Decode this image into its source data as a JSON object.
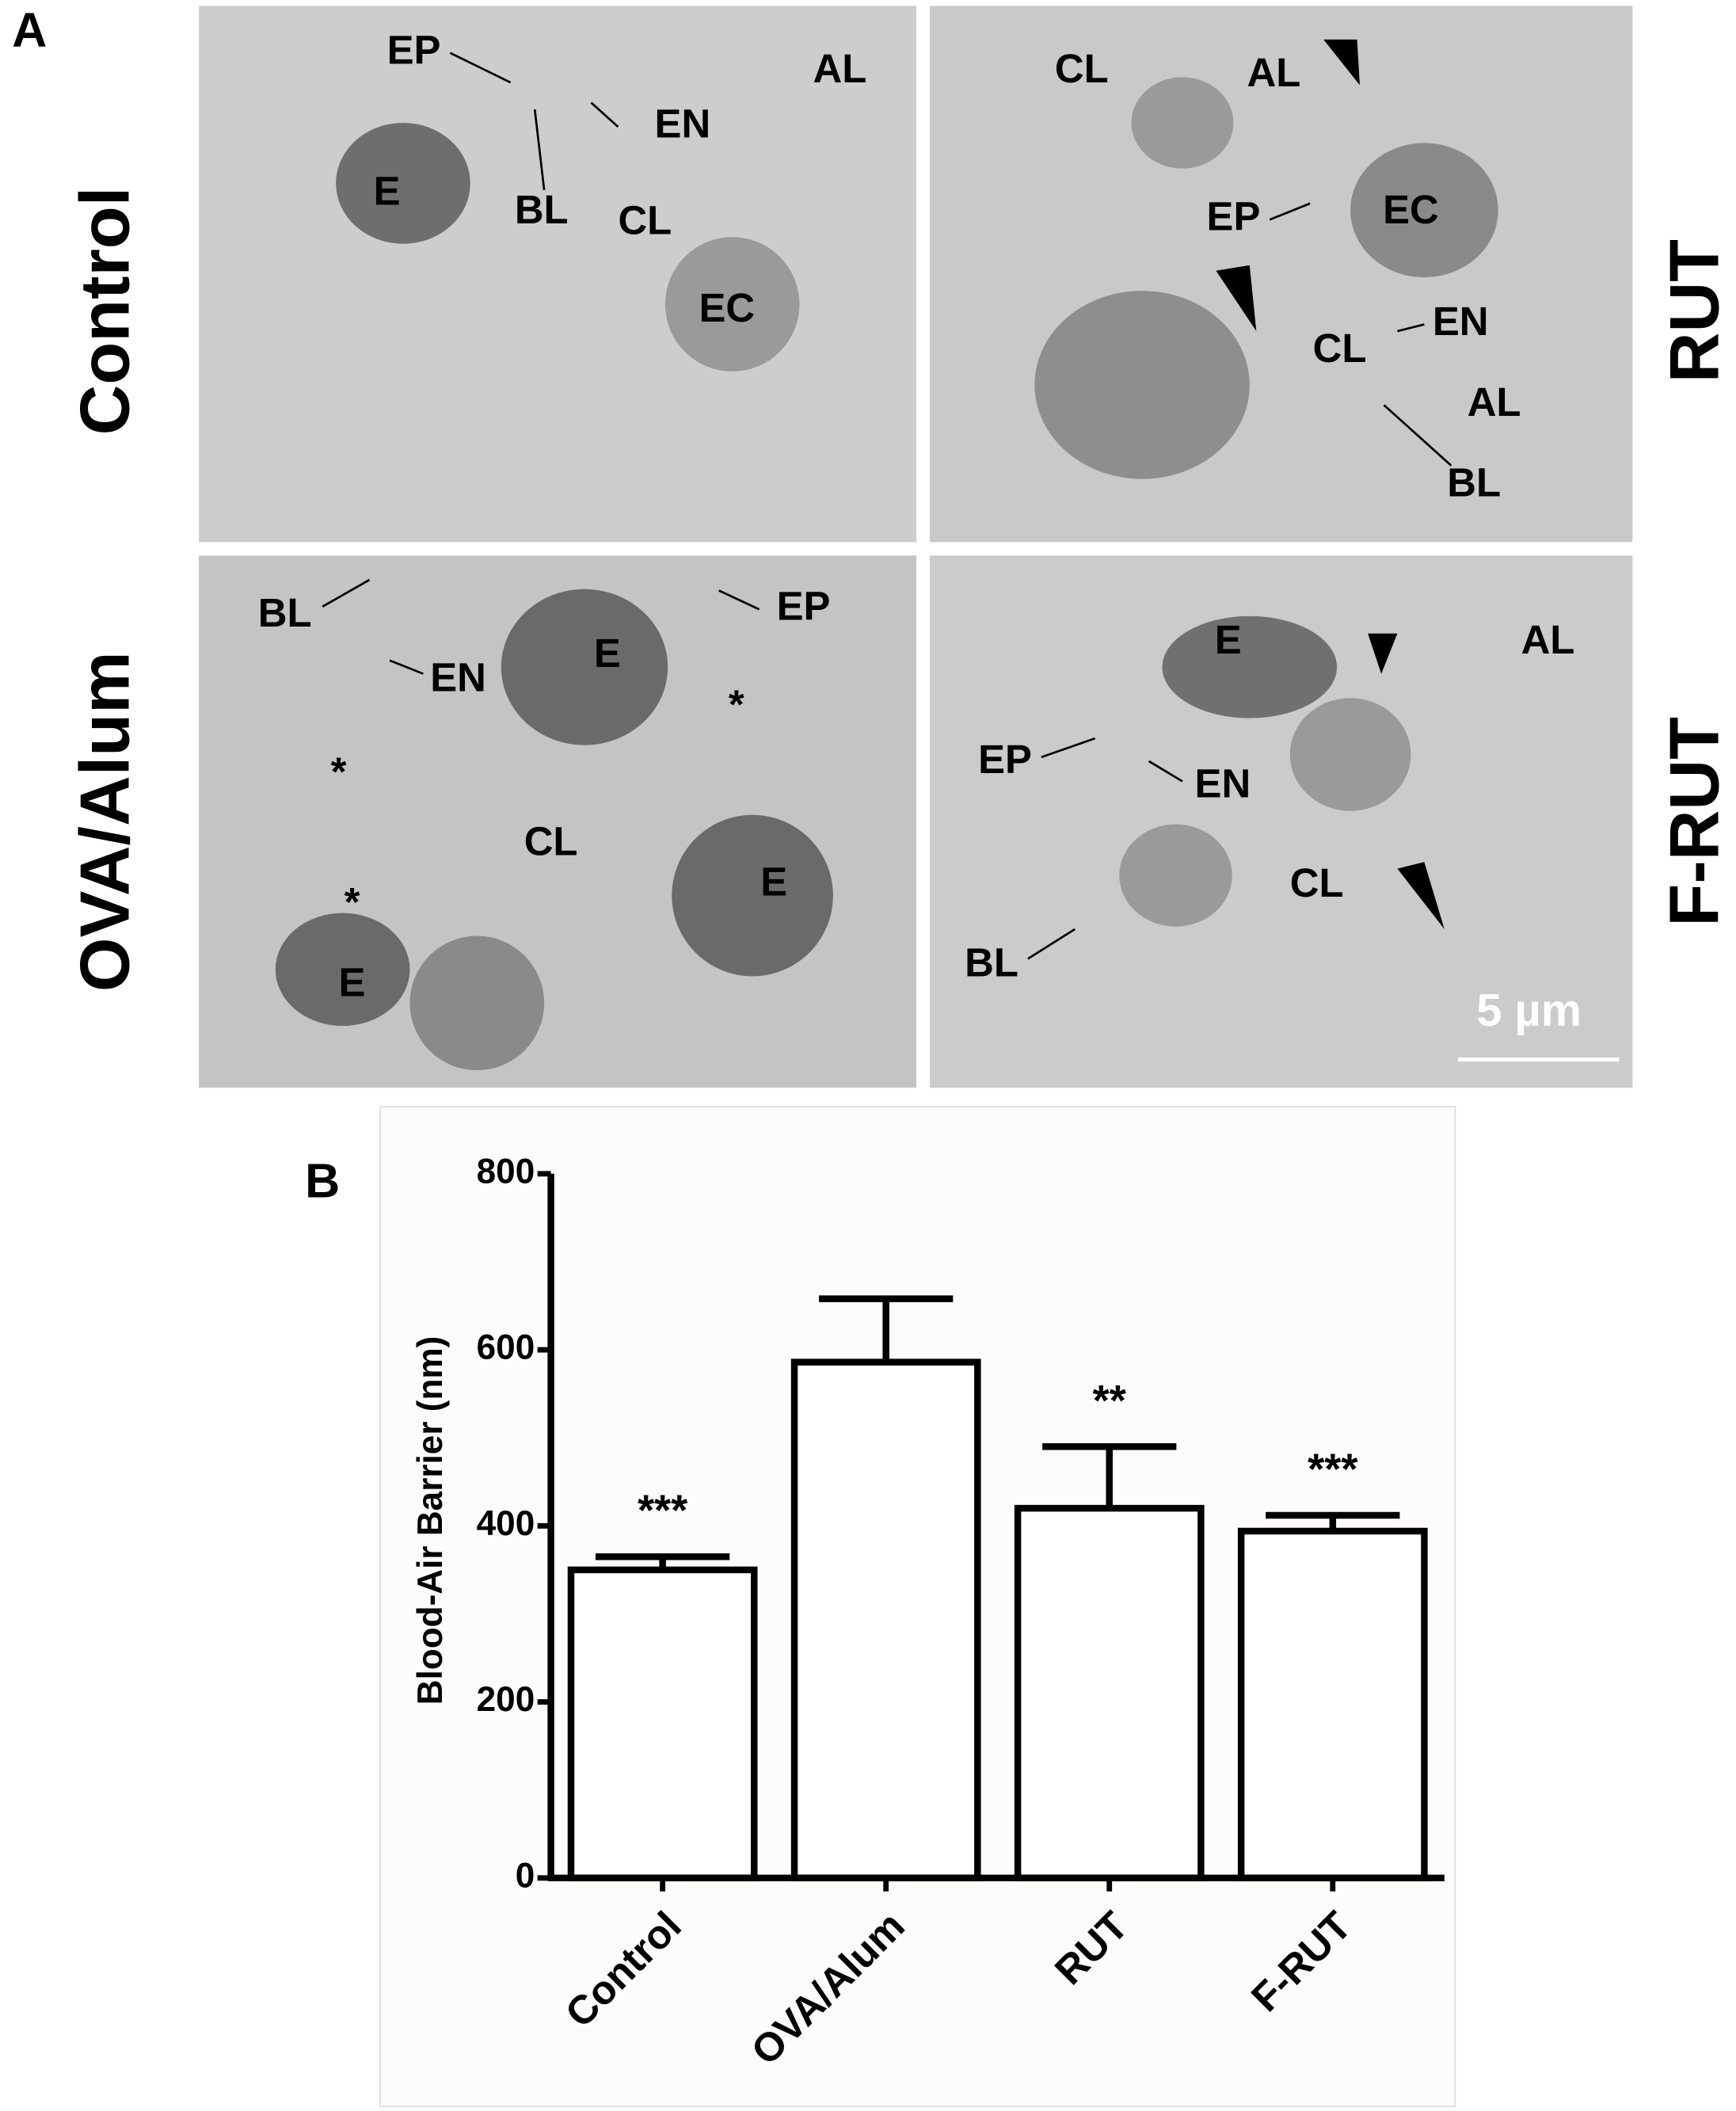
{
  "panel_a": {
    "label": "A",
    "scale_bar": "5 µm",
    "panels": [
      {
        "name": "Control",
        "labels": [
          "EP",
          "EN",
          "AL",
          "E",
          "BL",
          "CL",
          "EC"
        ]
      },
      {
        "name": "RUT",
        "labels": [
          "CL",
          "AL",
          "EP",
          "EC",
          "CL",
          "EN",
          "AL",
          "BL"
        ]
      },
      {
        "name": "OVA/Alum",
        "labels": [
          "BL",
          "EP",
          "EN",
          "E",
          "*",
          "*",
          "*",
          "CL",
          "E",
          "E"
        ]
      },
      {
        "name": "F-RUT",
        "labels": [
          "E",
          "AL",
          "EP",
          "EN",
          "CL",
          "BL"
        ]
      }
    ]
  },
  "chart_data": {
    "type": "bar",
    "panel_label": "B",
    "ylabel": "Blood-Air Barrier (nm)",
    "categories": [
      "Control",
      "OVA/Alum",
      "RUT",
      "F-RUT"
    ],
    "values": [
      350,
      586,
      420,
      394
    ],
    "errors": [
      15,
      72,
      70,
      18
    ],
    "annotations": [
      "***",
      null,
      "**",
      "***"
    ],
    "color": "#ffffff",
    "edgecolor": "#000000",
    "ylim": [
      0,
      800
    ],
    "yticks": [
      0,
      200,
      400,
      600,
      800
    ]
  }
}
